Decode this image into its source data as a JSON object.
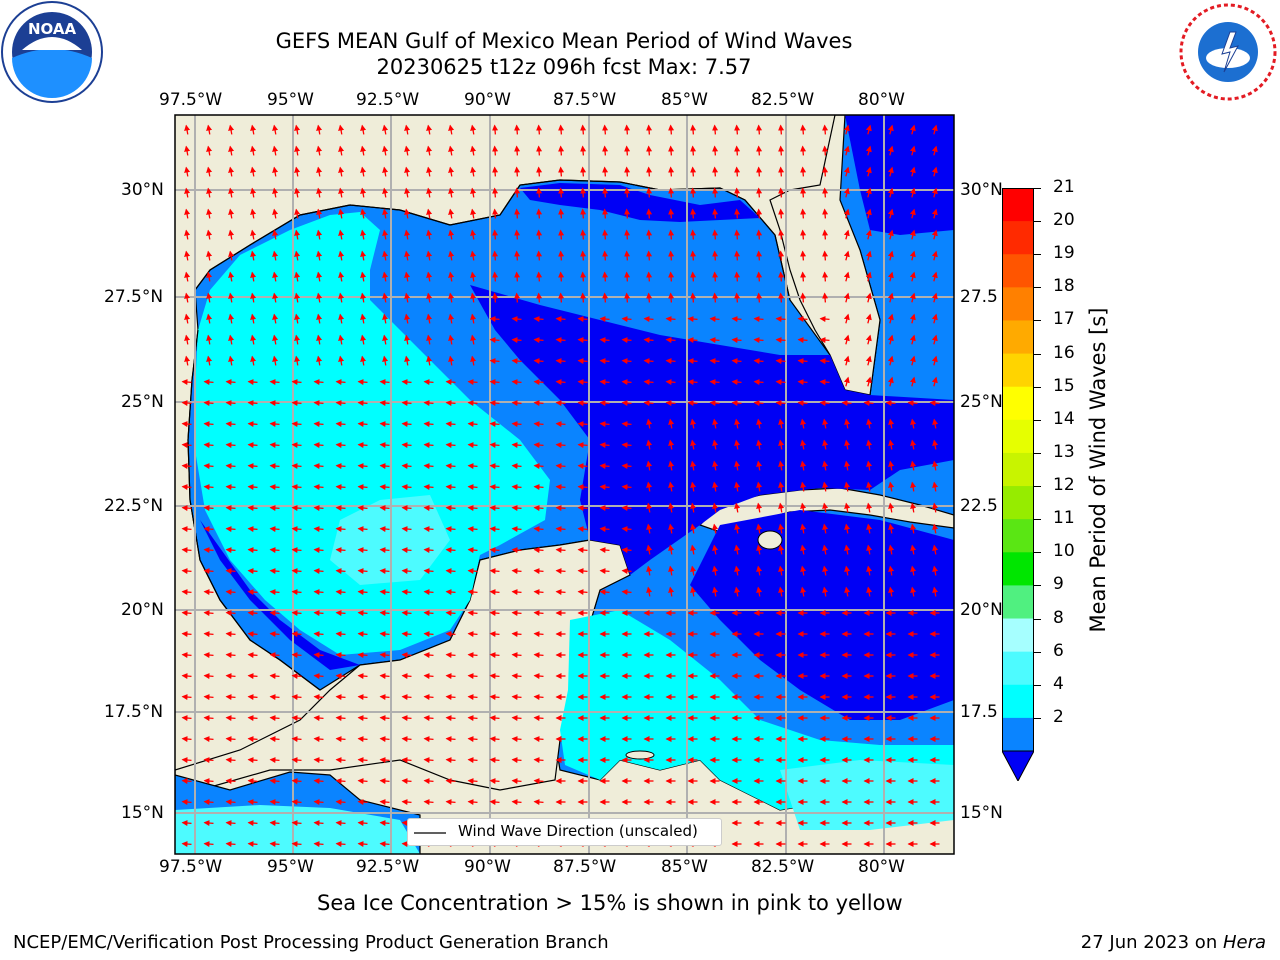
{
  "header": {
    "title_line1": "GEFS MEAN Gulf of Mexico Mean Period of Wind Waves",
    "title_line2": "20230625 t12z 096h fcst   Max: 7.57"
  },
  "logos": {
    "left": "noaa-logo",
    "right": "national-weather-service-logo"
  },
  "map": {
    "lon_labels": [
      "97.5°W",
      "95°W",
      "92.5°W",
      "90°W",
      "87.5°W",
      "85°W",
      "82.5°W",
      "80°W"
    ],
    "lat_labels": [
      "30°N",
      "27.5°N",
      "25°N",
      "22.5°N",
      "20°N",
      "17.5°N",
      "15°N"
    ],
    "lat_labels_right": [
      "30°N",
      "27.5",
      "25°N",
      "22.5",
      "20°N",
      "17.5",
      "15°N"
    ],
    "legend_label": "Wind Wave Direction (unscaled)",
    "colors": {
      "land": "#efedd9",
      "ocean_deep": "#0000f5",
      "ocean_mid": "#0a84ff",
      "ocean_light": "#00ffff",
      "ocean_pale": "#4dfbff",
      "arrow": "#ff0000",
      "grid": "#b0b0b0"
    }
  },
  "colorbar": {
    "label": "Mean Period of Wind Waves [s]",
    "ticks": [
      "21",
      "20",
      "19",
      "18",
      "17",
      "16",
      "15",
      "14",
      "13",
      "12",
      "11",
      "10",
      "9",
      "8",
      "6",
      "4",
      "2"
    ],
    "colors": [
      "#ff0000",
      "#ff2a00",
      "#ff5500",
      "#ff8000",
      "#ffaa00",
      "#ffd400",
      "#ffff00",
      "#e6ff00",
      "#c8f400",
      "#96ec00",
      "#5ae614",
      "#00e600",
      "#50f080",
      "#a6ffff",
      "#4dfbff",
      "#00ffff",
      "#0a84ff"
    ],
    "under_color": "#0000f5"
  },
  "captions": {
    "sea_ice": "Sea Ice Concentration > 15% is shown in pink to yellow",
    "branch": "NCEP/EMC/Verification Post Processing Product Generation Branch",
    "date_prefix": "27 Jun 2023 on ",
    "machine": "Hera"
  }
}
